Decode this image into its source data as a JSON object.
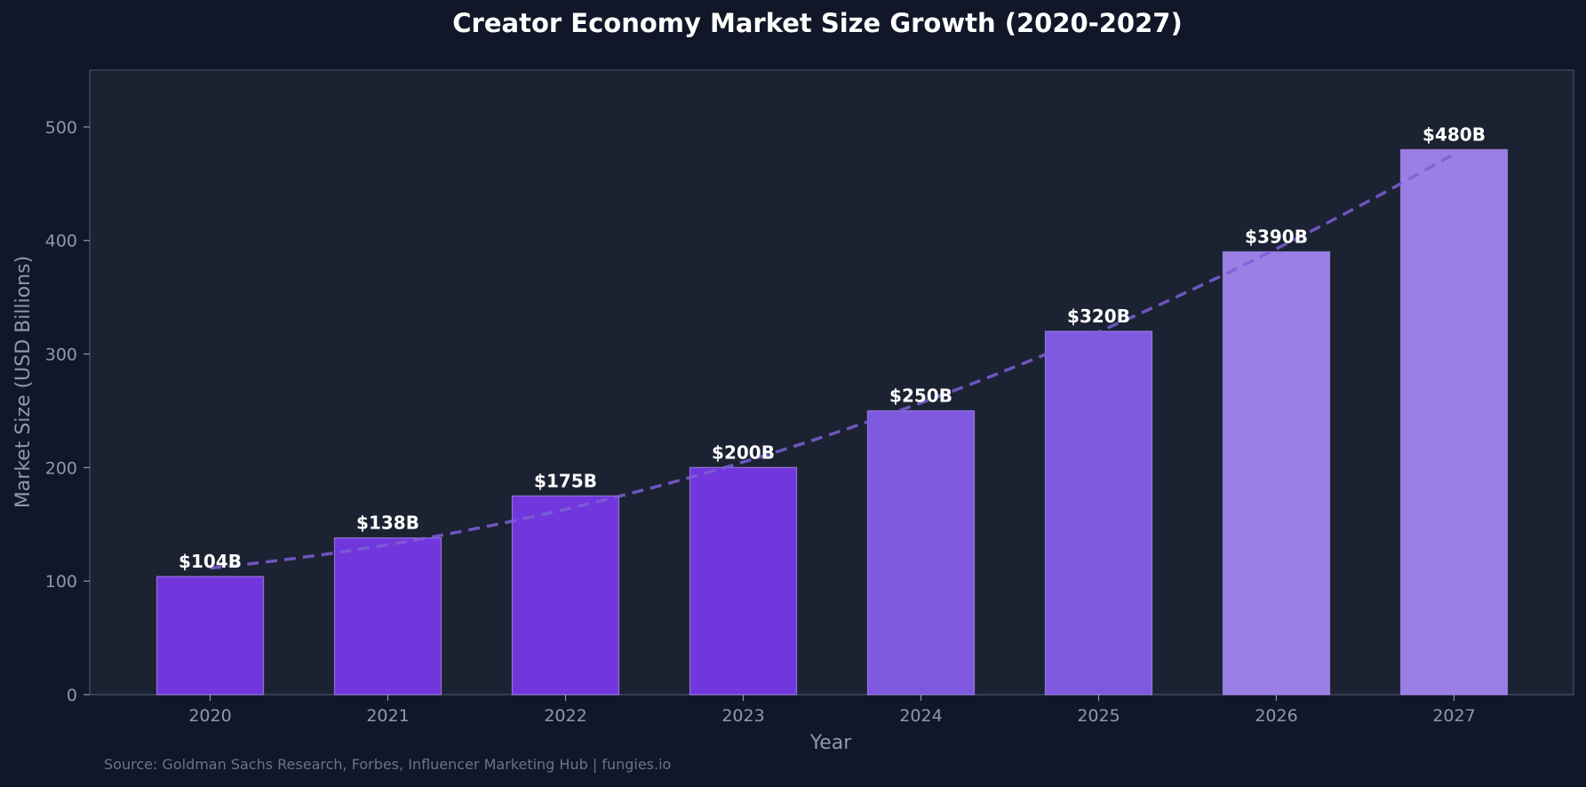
{
  "chart_data": {
    "type": "bar",
    "title": "Creator Economy Market Size Growth (2020-2027)",
    "xlabel": "Year",
    "ylabel": "Market Size (USD Billions)",
    "categories": [
      "2020",
      "2021",
      "2022",
      "2023",
      "2024",
      "2025",
      "2026",
      "2027"
    ],
    "values": [
      104,
      138,
      175,
      200,
      250,
      320,
      390,
      480
    ],
    "value_labels": [
      "$104B",
      "$138B",
      "$175B",
      "$200B",
      "$250B",
      "$320B",
      "$390B",
      "$480B"
    ],
    "bar_colors": [
      "#7136dc",
      "#7136dc",
      "#7136dc",
      "#7136dc",
      "#7f58e0",
      "#7f58e0",
      "#9a80e5",
      "#9a80e5"
    ],
    "ylim": [
      0,
      550
    ],
    "yticks": [
      0,
      100,
      200,
      300,
      400,
      500
    ],
    "trend_line": {
      "style": "dashed",
      "color": "#7d5fd6"
    },
    "grid": false,
    "source": "Source: Goldman Sachs Research, Forbes, Influencer Marketing Hub | fungies.io",
    "colors": {
      "background": "#111628",
      "plot_background": "#1b2232",
      "axis": "#3a4356",
      "text": "#8f98ad",
      "title": "#ffffff"
    }
  }
}
